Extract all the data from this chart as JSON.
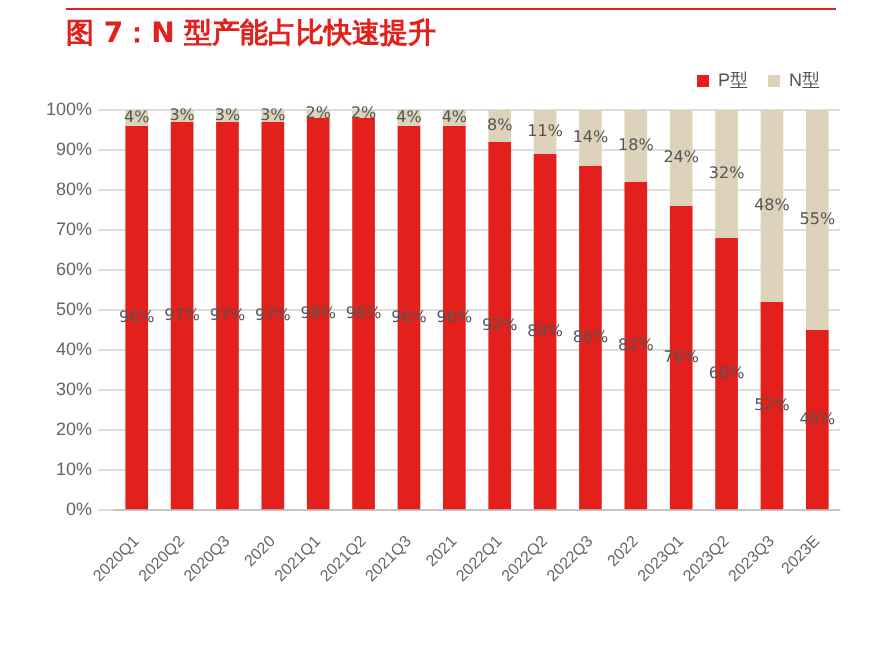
{
  "chart_data": {
    "type": "bar",
    "title": "图 7：N 型产能占比快速提升",
    "stacked": true,
    "categories": [
      "2020Q1",
      "2020Q2",
      "2020Q3",
      "2020",
      "2021Q1",
      "2021Q2",
      "2021Q3",
      "2021",
      "2022Q1",
      "2022Q2",
      "2022Q3",
      "2022",
      "2023Q1",
      "2023Q2",
      "2023Q3",
      "2023E"
    ],
    "series": [
      {
        "name": "P型",
        "color": "#e3201b",
        "values": [
          96,
          97,
          97,
          97,
          98,
          98,
          96,
          96,
          92,
          89,
          86,
          82,
          76,
          68,
          52,
          45
        ],
        "value_labels": [
          "96%",
          "97%",
          "97%",
          "97%",
          "98%",
          "98%",
          "96%",
          "96%",
          "92%",
          "89%",
          "86%",
          "82%",
          "76%",
          "68%",
          "52%",
          "45%"
        ]
      },
      {
        "name": "N型",
        "color": "#ddd3bb",
        "values": [
          4,
          3,
          3,
          3,
          2,
          2,
          4,
          4,
          8,
          11,
          14,
          18,
          24,
          32,
          48,
          55
        ],
        "value_labels": [
          "4%",
          "3%",
          "3%",
          "3%",
          "2%",
          "2%",
          "4%",
          "4%",
          "8%",
          "11%",
          "14%",
          "18%",
          "24%",
          "32%",
          "48%",
          "55%"
        ]
      }
    ],
    "ylim": [
      0,
      100
    ],
    "yticks": [
      {
        "value": 0,
        "label": "0%"
      },
      {
        "value": 10,
        "label": "10%"
      },
      {
        "value": 20,
        "label": "20%"
      },
      {
        "value": 30,
        "label": "30%"
      },
      {
        "value": 40,
        "label": "40%"
      },
      {
        "value": 50,
        "label": "50%"
      },
      {
        "value": 60,
        "label": "60%"
      },
      {
        "value": 70,
        "label": "70%"
      },
      {
        "value": 80,
        "label": "80%"
      },
      {
        "value": 90,
        "label": "90%"
      },
      {
        "value": 100,
        "label": "100%"
      }
    ],
    "grid": "y",
    "legend": "top right"
  }
}
